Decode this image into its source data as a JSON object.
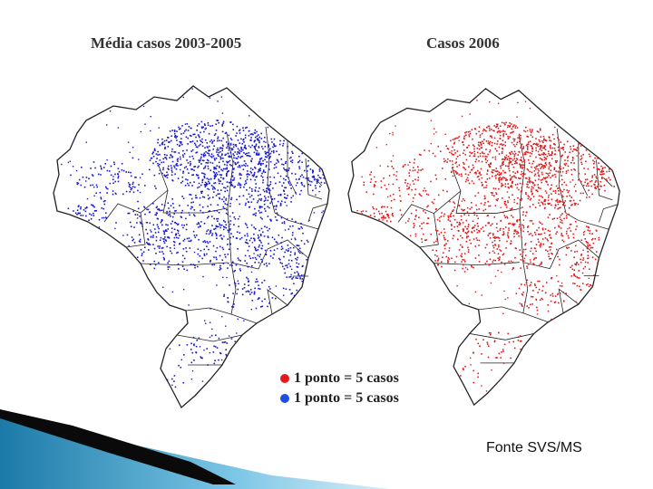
{
  "titles": {
    "left": "Média casos 2003-2005",
    "right": "Casos 2006"
  },
  "legend": {
    "items": [
      {
        "label": "1 ponto = 5 casos",
        "color": "#e31a1c"
      },
      {
        "label": "1 ponto = 5 casos",
        "color": "#1f4fe0"
      }
    ]
  },
  "source": "Fonte SVS/MS",
  "colors": {
    "left_points": "#1a1acc",
    "right_points": "#e01818",
    "border": "#222222",
    "accent_decor": "#1b7aa8"
  }
}
